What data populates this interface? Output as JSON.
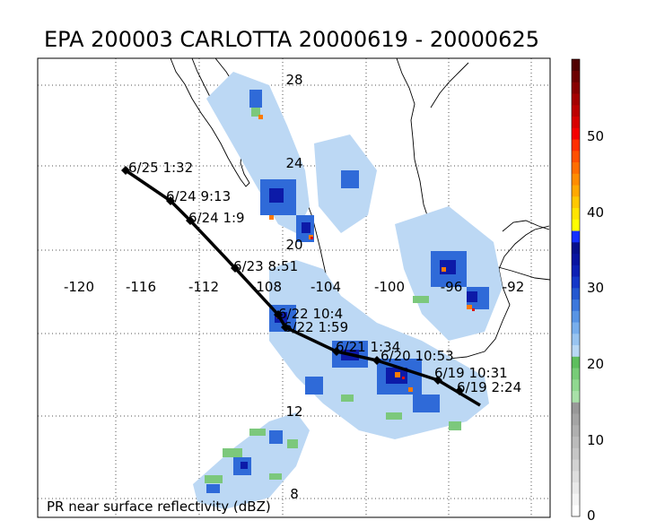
{
  "title": "EPA 200003 CARLOTTA 20000619 - 20000625",
  "footer_label": "PR near surface reflectivity (dBZ)",
  "lat_labels": [
    "28",
    "24",
    "20",
    "12",
    "8"
  ],
  "lon_labels": [
    "-120",
    "-116",
    "-112",
    "-108",
    "-104",
    "-100",
    "-96",
    "-92"
  ],
  "colorbar": {
    "ticks": [
      "0",
      "10",
      "20",
      "30",
      "40",
      "50"
    ],
    "colors": [
      "#ffffff",
      "#f4f4f4",
      "#e9e9e9",
      "#dedede",
      "#d2d2d2",
      "#c6c6c6",
      "#bbbbbb",
      "#afafaf",
      "#a4a4a4",
      "#989898",
      "#a8e0a8",
      "#90d890",
      "#78cc78",
      "#5ebe5e",
      "#b8d8f4",
      "#98c4f0",
      "#78aeec",
      "#5894e4",
      "#3c78dc",
      "#2458d0",
      "#1438c8",
      "#0c20b4",
      "#0814a0",
      "#06108c",
      "#1430ff",
      "#ffff00",
      "#ffe400",
      "#ffc800",
      "#ffa800",
      "#ff8c00",
      "#ff6e00",
      "#ff5000",
      "#ff2e00",
      "#f40000",
      "#d80000",
      "#bc0000",
      "#a40000",
      "#880000",
      "#6c0000",
      "#500000"
    ]
  },
  "track": [
    {
      "label": "6/25 1:32"
    },
    {
      "label": "6/24 9:13"
    },
    {
      "label": "6/24 1:9"
    },
    {
      "label": "6/23 8:51"
    },
    {
      "label": "6/22 10:4"
    },
    {
      "label": "6/22 1:59"
    },
    {
      "label": "6/21 1:34"
    },
    {
      "label": "6/20 10:53"
    },
    {
      "label": "6/19 10:31"
    },
    {
      "label": "6/19 2:24"
    }
  ]
}
